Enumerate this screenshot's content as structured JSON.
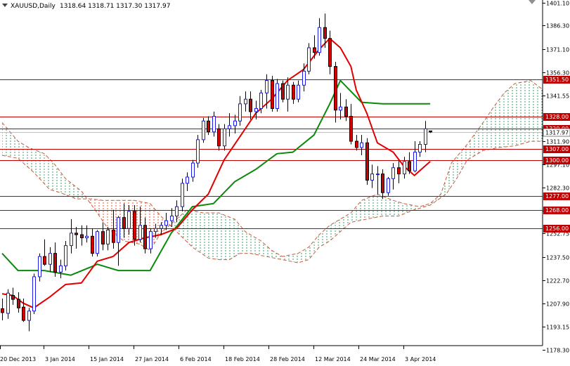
{
  "header": {
    "symbol": "XAUUSD,Daily",
    "ohlc": "1318.64 1318.71 1317.30 1317.97"
  },
  "chart_data": {
    "type": "candlestick",
    "title": "XAUUSD,Daily",
    "ylim": [
      1178.3,
      1401.1
    ],
    "y_ticks": [
      1401.1,
      1386.3,
      1371.1,
      1356.3,
      1341.55,
      1311.9,
      1297.1,
      1282.3,
      1267.55,
      1252.75,
      1237.5,
      1222.7,
      1207.9,
      1193.15,
      1178.3
    ],
    "x_labels": [
      "20 Dec 2013",
      "3 Jan 2014",
      "15 Jan 2014",
      "27 Jan 2014",
      "6 Feb 2014",
      "18 Feb 2014",
      "28 Feb 2014",
      "12 Mar 2014",
      "24 Mar 2014",
      "3 Apr 2014"
    ],
    "price_levels": [
      {
        "value": 1351.5,
        "label": "1351.50"
      },
      {
        "value": 1328.0,
        "label": "1328.00"
      },
      {
        "value": 1320.0,
        "label": "1320.00"
      },
      {
        "value": 1307.0,
        "label": "1307.00"
      },
      {
        "value": 1300.0,
        "label": "1300.00"
      },
      {
        "value": 1277.0,
        "label": "1277.00"
      },
      {
        "value": 1268.0,
        "label": "1268.00"
      },
      {
        "value": 1256.0,
        "label": "1256.00"
      }
    ],
    "current_price": {
      "value": 1317.97,
      "label": "1317.97"
    },
    "candles": [
      [
        1204.5,
        1211.0,
        1197.0,
        1202.0
      ],
      [
        1201.5,
        1217.0,
        1198.0,
        1214.5
      ],
      [
        1213.0,
        1218.0,
        1207.0,
        1210.5
      ],
      [
        1210.5,
        1215.0,
        1202.0,
        1205.0
      ],
      [
        1205.5,
        1211.0,
        1196.0,
        1197.0
      ],
      [
        1197.0,
        1205.0,
        1190.0,
        1203.0
      ],
      [
        1203.0,
        1227.0,
        1201.0,
        1225.0
      ],
      [
        1225.0,
        1240.0,
        1222.0,
        1238.0
      ],
      [
        1238.0,
        1249.0,
        1232.0,
        1233.0
      ],
      [
        1233.0,
        1244.0,
        1228.0,
        1240.0
      ],
      [
        1240.0,
        1247.0,
        1225.0,
        1228.0
      ],
      [
        1228.0,
        1236.0,
        1224.0,
        1232.0
      ],
      [
        1232.0,
        1248.0,
        1229.0,
        1245.0
      ],
      [
        1245.0,
        1262.0,
        1240.0,
        1253.0
      ],
      [
        1253.0,
        1257.0,
        1243.0,
        1252.0
      ],
      [
        1252.0,
        1258.0,
        1245.0,
        1250.0
      ],
      [
        1250.0,
        1258.0,
        1247.0,
        1251.0
      ],
      [
        1251.0,
        1256.0,
        1238.0,
        1240.0
      ],
      [
        1240.0,
        1255.0,
        1238.0,
        1254.0
      ],
      [
        1254.0,
        1260.0,
        1242.0,
        1246.0
      ],
      [
        1246.0,
        1257.0,
        1242.0,
        1255.0
      ],
      [
        1255.0,
        1268.0,
        1243.0,
        1247.0
      ],
      [
        1247.0,
        1264.0,
        1232.0,
        1263.0
      ],
      [
        1263.0,
        1272.0,
        1250.0,
        1256.0
      ],
      [
        1256.0,
        1271.0,
        1252.0,
        1267.0
      ],
      [
        1267.0,
        1271.0,
        1245.0,
        1249.0
      ],
      [
        1249.0,
        1270.0,
        1247.0,
        1258.0
      ],
      [
        1258.0,
        1263.0,
        1240.0,
        1243.0
      ],
      [
        1243.0,
        1256.0,
        1240.0,
        1254.0
      ],
      [
        1254.0,
        1259.0,
        1250.0,
        1256.0
      ],
      [
        1256.0,
        1260.0,
        1252.0,
        1258.0
      ],
      [
        1258.0,
        1266.0,
        1255.0,
        1261.0
      ],
      [
        1261.0,
        1269.0,
        1257.0,
        1264.0
      ],
      [
        1264.0,
        1274.0,
        1260.0,
        1270.0
      ],
      [
        1270.0,
        1288.0,
        1267.0,
        1285.0
      ],
      [
        1285.0,
        1292.0,
        1280.0,
        1289.0
      ],
      [
        1289.0,
        1300.0,
        1286.0,
        1298.0
      ],
      [
        1298.0,
        1316.0,
        1295.0,
        1313.0
      ],
      [
        1313.0,
        1327.0,
        1311.0,
        1325.0
      ],
      [
        1325.0,
        1328.0,
        1316.0,
        1318.0
      ],
      [
        1318.0,
        1331.0,
        1315.0,
        1328.0
      ],
      [
        1320.0,
        1323.0,
        1306.0,
        1309.0
      ],
      [
        1309.0,
        1323.0,
        1306.0,
        1320.0
      ],
      [
        1320.0,
        1330.0,
        1315.0,
        1322.0
      ],
      [
        1322.0,
        1329.0,
        1317.0,
        1325.0
      ],
      [
        1325.0,
        1341.0,
        1322.0,
        1336.0
      ],
      [
        1336.0,
        1344.0,
        1331.0,
        1339.0
      ],
      [
        1339.0,
        1344.0,
        1326.0,
        1331.0
      ],
      [
        1331.0,
        1338.0,
        1326.0,
        1333.0
      ],
      [
        1333.0,
        1345.0,
        1330.0,
        1343.0
      ],
      [
        1343.0,
        1355.0,
        1333.0,
        1351.0
      ],
      [
        1351.0,
        1354.0,
        1331.0,
        1333.0
      ],
      [
        1333.0,
        1352.0,
        1331.0,
        1349.0
      ],
      [
        1349.0,
        1351.0,
        1337.0,
        1339.0
      ],
      [
        1339.0,
        1353.0,
        1331.0,
        1348.0
      ],
      [
        1348.0,
        1350.0,
        1336.0,
        1339.0
      ],
      [
        1339.0,
        1351.0,
        1337.0,
        1348.0
      ],
      [
        1348.0,
        1362.0,
        1344.0,
        1357.0
      ],
      [
        1357.0,
        1375.0,
        1355.0,
        1372.0
      ],
      [
        1372.0,
        1380.0,
        1365.0,
        1369.0
      ],
      [
        1369.0,
        1391.0,
        1367.0,
        1385.0
      ],
      [
        1385.0,
        1394.0,
        1372.0,
        1378.0
      ],
      [
        1378.0,
        1383.0,
        1355.0,
        1360.0
      ],
      [
        1360.0,
        1363.0,
        1324.0,
        1332.0
      ],
      [
        1332.0,
        1343.0,
        1326.0,
        1334.0
      ],
      [
        1334.0,
        1339.0,
        1325.0,
        1328.0
      ],
      [
        1328.0,
        1336.0,
        1310.0,
        1312.0
      ],
      [
        1312.0,
        1316.0,
        1306.0,
        1308.0
      ],
      [
        1308.0,
        1316.0,
        1303.0,
        1311.0
      ],
      [
        1311.0,
        1314.0,
        1284.0,
        1287.0
      ],
      [
        1287.0,
        1297.0,
        1282.0,
        1291.0
      ],
      [
        1291.0,
        1296.0,
        1278.0,
        1291.0
      ],
      [
        1291.0,
        1294.0,
        1275.0,
        1279.0
      ],
      [
        1279.0,
        1289.0,
        1277.0,
        1288.0
      ],
      [
        1288.0,
        1298.0,
        1281.0,
        1295.0
      ],
      [
        1295.0,
        1300.0,
        1285.0,
        1291.0
      ],
      [
        1291.0,
        1302.0,
        1288.0,
        1299.0
      ],
      [
        1299.0,
        1305.0,
        1291.0,
        1293.0
      ],
      [
        1293.0,
        1312.0,
        1292.0,
        1305.0
      ],
      [
        1305.0,
        1312.0,
        1302.0,
        1310.0
      ],
      [
        1310.0,
        1325.0,
        1305.0,
        1320.0
      ],
      [
        1318.64,
        1318.71,
        1317.3,
        1317.97
      ]
    ],
    "tenkan_sen": [
      [
        0,
        1214
      ],
      [
        2,
        1213
      ],
      [
        4,
        1208
      ],
      [
        6,
        1205
      ],
      [
        9,
        1212
      ],
      [
        12,
        1220
      ],
      [
        15,
        1221
      ],
      [
        18,
        1235
      ],
      [
        21,
        1238
      ],
      [
        24,
        1247
      ],
      [
        27,
        1250
      ],
      [
        30,
        1252
      ],
      [
        33,
        1256
      ],
      [
        36,
        1268
      ],
      [
        39,
        1278
      ],
      [
        42,
        1300
      ],
      [
        45,
        1315
      ],
      [
        48,
        1330
      ],
      [
        51,
        1339
      ],
      [
        54,
        1351
      ],
      [
        57,
        1358
      ],
      [
        60,
        1371
      ],
      [
        62,
        1378
      ],
      [
        64,
        1372
      ],
      [
        66,
        1360
      ],
      [
        67,
        1345
      ],
      [
        69,
        1330
      ],
      [
        71,
        1311
      ],
      [
        74,
        1305
      ],
      [
        76,
        1296
      ],
      [
        78,
        1290
      ],
      [
        80,
        1296
      ],
      [
        81,
        1299
      ]
    ],
    "kijun_sen": [
      [
        0,
        1240
      ],
      [
        3,
        1229
      ],
      [
        8,
        1229
      ],
      [
        13,
        1226
      ],
      [
        18,
        1233
      ],
      [
        22,
        1229
      ],
      [
        28,
        1229
      ],
      [
        32,
        1253
      ],
      [
        36,
        1270
      ],
      [
        40,
        1272
      ],
      [
        44,
        1286
      ],
      [
        48,
        1294
      ],
      [
        52,
        1304
      ],
      [
        55,
        1305
      ],
      [
        59,
        1316
      ],
      [
        62,
        1336
      ],
      [
        64,
        1351
      ],
      [
        66,
        1344
      ],
      [
        68,
        1337
      ],
      [
        72,
        1336
      ],
      [
        75,
        1336
      ],
      [
        78,
        1336
      ],
      [
        81,
        1336
      ]
    ],
    "senkou_span_a": [
      [
        0,
        1324
      ],
      [
        3,
        1312
      ],
      [
        5,
        1308
      ],
      [
        8,
        1304
      ],
      [
        10,
        1297
      ],
      [
        12,
        1288
      ],
      [
        15,
        1280
      ],
      [
        18,
        1266
      ],
      [
        20,
        1256
      ],
      [
        23,
        1248
      ],
      [
        26,
        1246
      ],
      [
        28,
        1242
      ],
      [
        30,
        1253
      ],
      [
        33,
        1262
      ],
      [
        35,
        1268
      ],
      [
        38,
        1266
      ],
      [
        41,
        1266
      ],
      [
        44,
        1262
      ],
      [
        46,
        1254
      ],
      [
        49,
        1248
      ],
      [
        51,
        1242
      ],
      [
        53,
        1238
      ],
      [
        56,
        1240
      ],
      [
        58,
        1244
      ],
      [
        60,
        1252
      ],
      [
        62,
        1258
      ],
      [
        64,
        1262
      ],
      [
        66,
        1266
      ],
      [
        68,
        1274
      ],
      [
        71,
        1278
      ],
      [
        74,
        1274
      ],
      [
        76,
        1272
      ],
      [
        79,
        1270
      ],
      [
        81,
        1272
      ],
      [
        83,
        1278
      ],
      [
        85,
        1298
      ],
      [
        88,
        1310
      ],
      [
        91,
        1324
      ],
      [
        93,
        1334
      ],
      [
        95,
        1343
      ],
      [
        97,
        1349
      ],
      [
        100,
        1351
      ],
      [
        102,
        1346
      ],
      [
        104,
        1340
      ],
      [
        106,
        1329
      ]
    ],
    "senkou_span_b": [
      [
        0,
        1303
      ],
      [
        3,
        1301
      ],
      [
        6,
        1292
      ],
      [
        9,
        1281
      ],
      [
        11,
        1279
      ],
      [
        14,
        1275
      ],
      [
        17,
        1275
      ],
      [
        19,
        1274
      ],
      [
        22,
        1274
      ],
      [
        25,
        1274
      ],
      [
        28,
        1272
      ],
      [
        30,
        1264
      ],
      [
        33,
        1254
      ],
      [
        36,
        1244
      ],
      [
        39,
        1237
      ],
      [
        41,
        1236
      ],
      [
        43,
        1236
      ],
      [
        45,
        1240
      ],
      [
        47,
        1240
      ],
      [
        50,
        1238
      ],
      [
        53,
        1236
      ],
      [
        56,
        1234
      ],
      [
        58,
        1236
      ],
      [
        60,
        1244
      ],
      [
        62,
        1248
      ],
      [
        64,
        1254
      ],
      [
        66,
        1260
      ],
      [
        69,
        1262
      ],
      [
        72,
        1264
      ],
      [
        75,
        1264
      ],
      [
        78,
        1268
      ],
      [
        81,
        1271
      ],
      [
        84,
        1278
      ],
      [
        86,
        1288
      ],
      [
        88,
        1300
      ],
      [
        91,
        1306
      ],
      [
        94,
        1308
      ],
      [
        97,
        1309
      ],
      [
        100,
        1312
      ],
      [
        103,
        1312
      ],
      [
        106,
        1312
      ]
    ]
  }
}
